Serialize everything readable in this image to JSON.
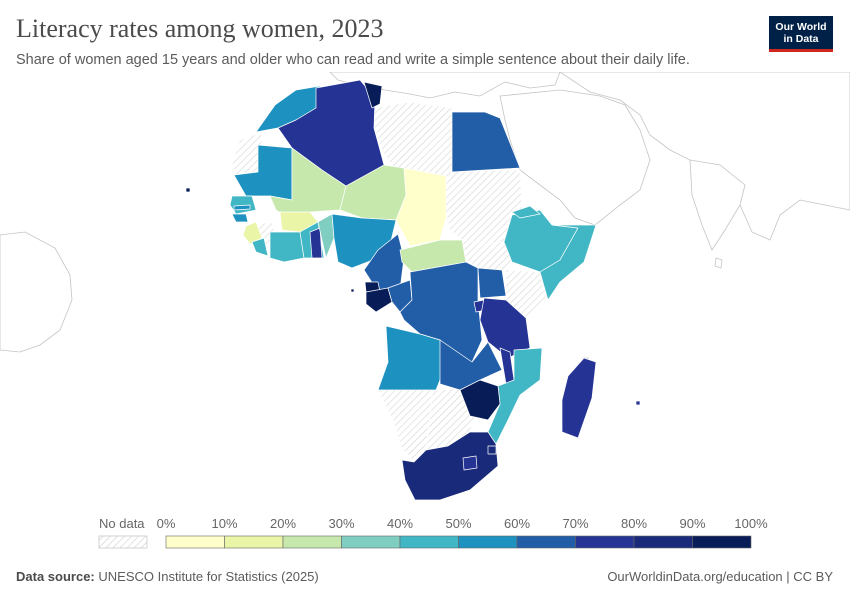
{
  "header": {
    "title": "Literacy rates among women, 2023",
    "subtitle": "Share of women aged 15 years and older who can read and write a simple sentence about their daily life."
  },
  "logo": {
    "line1": "Our World",
    "line2": "in Data"
  },
  "legend": {
    "no_data_label": "No data",
    "ticks": [
      "0%",
      "10%",
      "20%",
      "30%",
      "40%",
      "50%",
      "60%",
      "70%",
      "80%",
      "90%",
      "100%"
    ],
    "bin_colors": [
      "#ffffcc",
      "#eaf5a8",
      "#c7e8ad",
      "#80cdc1",
      "#41b6c4",
      "#1d91c0",
      "#225ea8",
      "#253494",
      "#1a2a7a",
      "#081d58"
    ]
  },
  "footer": {
    "source_label": "Data source:",
    "source_text": "UNESCO Institute for Statistics (2025)",
    "url_text": "OurWorldinData.org/education | CC BY"
  },
  "colors": {
    "no_data_stroke": "#cfcfcf",
    "border": "#666666",
    "outline": "#b3b3b3"
  }
}
